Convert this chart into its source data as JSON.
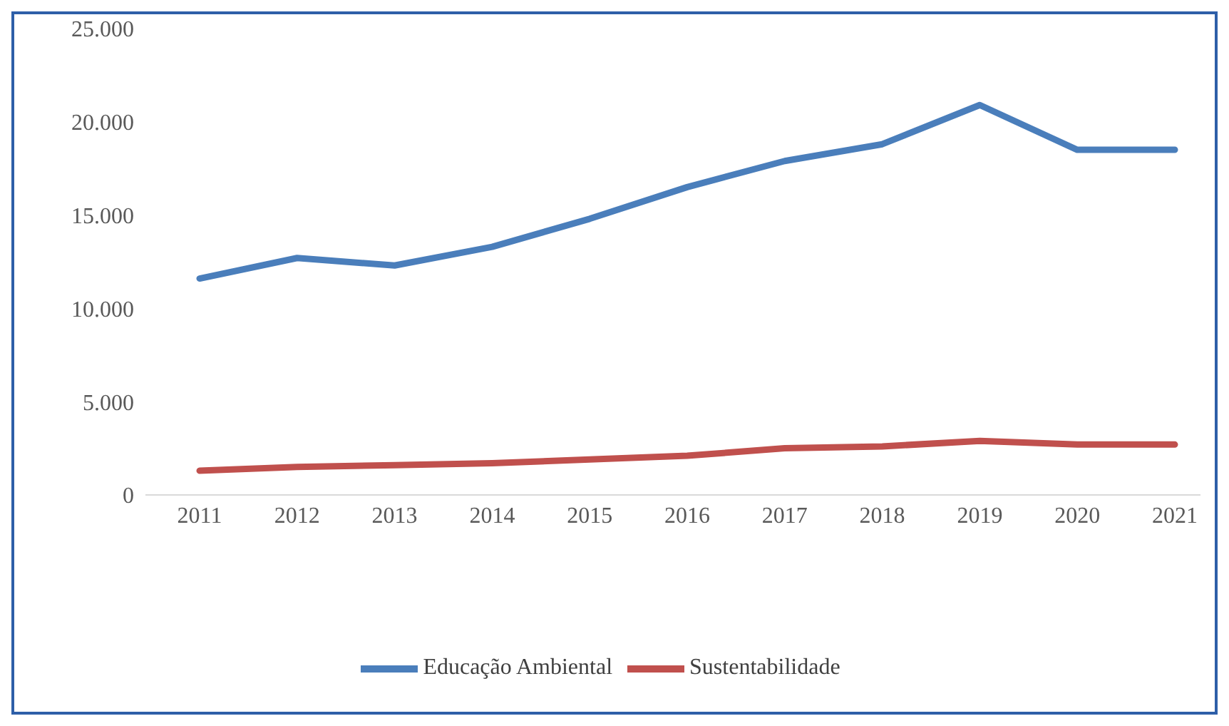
{
  "chart_data": {
    "type": "line",
    "categories": [
      "2011",
      "2012",
      "2013",
      "2014",
      "2015",
      "2016",
      "2017",
      "2018",
      "2019",
      "2020",
      "2021"
    ],
    "series": [
      {
        "name": "Educação Ambiental",
        "color": "#4a7ebb",
        "values": [
          11600,
          12700,
          12300,
          13300,
          14800,
          16500,
          17900,
          18800,
          20900,
          18500,
          18500
        ]
      },
      {
        "name": "Sustentabilidade",
        "color": "#c0504d",
        "values": [
          1300,
          1500,
          1600,
          1700,
          1900,
          2100,
          2500,
          2600,
          2900,
          2700,
          2700
        ]
      }
    ],
    "ylim": [
      0,
      25000
    ],
    "yticks": [
      {
        "value": 0,
        "label": "0"
      },
      {
        "value": 5000,
        "label": "5.000"
      },
      {
        "value": 10000,
        "label": "10.000"
      },
      {
        "value": 15000,
        "label": "15.000"
      },
      {
        "value": 20000,
        "label": "20.000"
      },
      {
        "value": 25000,
        "label": "25.000"
      }
    ],
    "grid": false,
    "legend": "bottom",
    "marker": "none",
    "line_style": "solid"
  }
}
